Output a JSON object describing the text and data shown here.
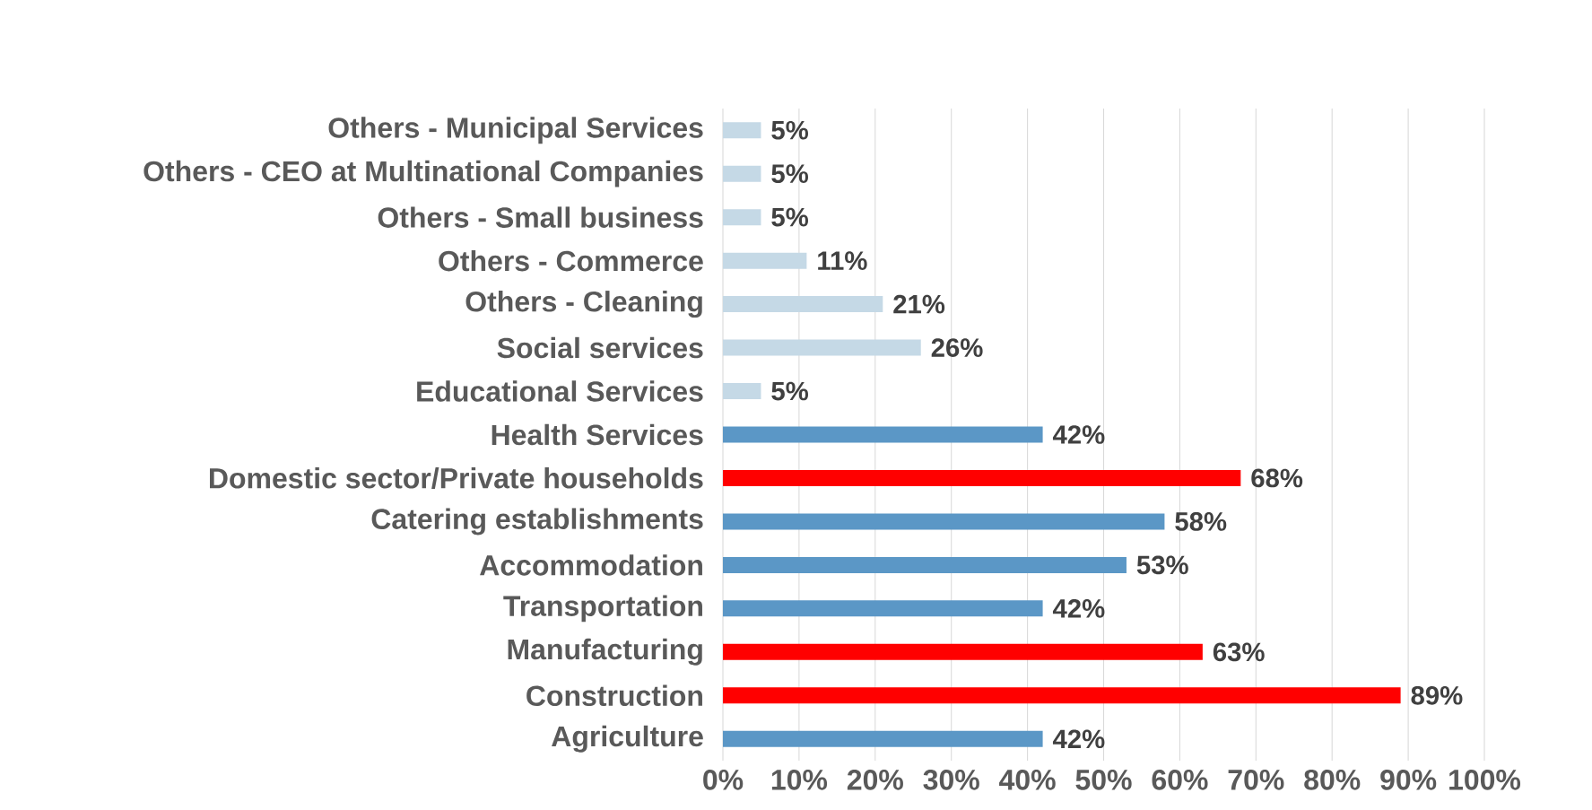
{
  "chart_data": {
    "type": "bar",
    "orientation": "horizontal",
    "categories": [
      "Others - Municipal Services",
      "Others - CEO at Multinational Companies",
      "Others - Small business",
      "Others - Commerce",
      "Others - Cleaning",
      "Social services",
      "Educational Services",
      "Health Services",
      "Domestic sector/Private households",
      "Catering establishments",
      "Accommodation",
      "Transportation",
      "Manufacturing",
      "Construction",
      "Agriculture"
    ],
    "values": [
      5,
      5,
      5,
      11,
      21,
      26,
      5,
      42,
      68,
      58,
      53,
      42,
      63,
      89,
      42
    ],
    "colors": [
      "#c5d9e6",
      "#c5d9e6",
      "#c5d9e6",
      "#c5d9e6",
      "#c5d9e6",
      "#c5d9e6",
      "#c5d9e6",
      "#5b97c6",
      "#ff0000",
      "#5b97c6",
      "#5b97c6",
      "#5b97c6",
      "#ff0000",
      "#ff0000",
      "#5b97c6"
    ],
    "value_labels": [
      "5%",
      "5%",
      "5%",
      "11%",
      "21%",
      "26%",
      "5%",
      "42%",
      "68%",
      "58%",
      "53%",
      "42%",
      "63%",
      "89%",
      "42%"
    ],
    "xlim": [
      0,
      100
    ],
    "xticks": [
      {
        "value": 0,
        "label": "0%"
      },
      {
        "value": 10,
        "label": "10%"
      },
      {
        "value": 20,
        "label": "20%"
      },
      {
        "value": 30,
        "label": "30%"
      },
      {
        "value": 40,
        "label": "40%"
      },
      {
        "value": 50,
        "label": "50%"
      },
      {
        "value": 60,
        "label": "60%"
      },
      {
        "value": 70,
        "label": "70%"
      },
      {
        "value": 80,
        "label": "80%"
      },
      {
        "value": 90,
        "label": "90%"
      },
      {
        "value": 100,
        "label": "100%"
      }
    ],
    "grid": "x"
  }
}
